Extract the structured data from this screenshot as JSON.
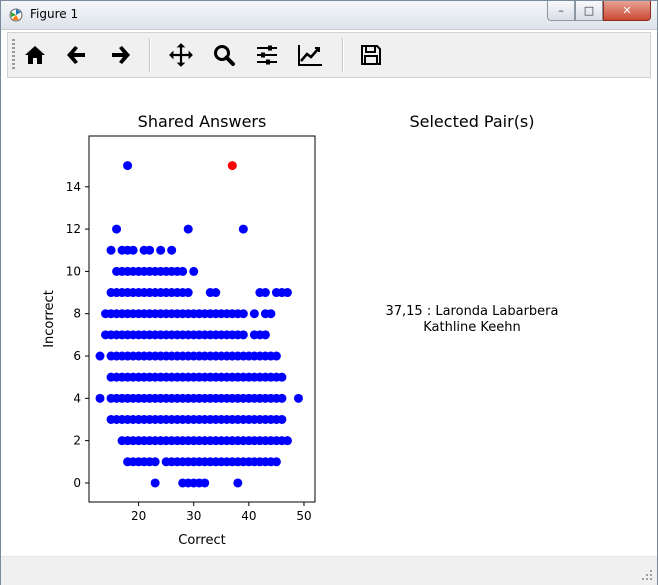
{
  "window": {
    "title": "Figure 1"
  },
  "caption_buttons": {
    "minimize": "–",
    "maximize": "□",
    "close": "✕"
  },
  "toolbar": {
    "buttons": [
      {
        "name": "home-icon",
        "tooltip": "Home"
      },
      {
        "name": "back-arrow-icon",
        "tooltip": "Back"
      },
      {
        "name": "forward-arrow-icon",
        "tooltip": "Forward"
      },
      {
        "name": "pan-icon",
        "tooltip": "Pan"
      },
      {
        "name": "zoom-icon",
        "tooltip": "Zoom"
      },
      {
        "name": "subplots-icon",
        "tooltip": "Subplots"
      },
      {
        "name": "axes-edit-icon",
        "tooltip": "Edit axis"
      },
      {
        "name": "save-icon",
        "tooltip": "Save"
      }
    ]
  },
  "figure": {
    "right_panel": {
      "title": "Selected Pair(s)",
      "line1": "37,15 : Laronda Labarbera",
      "line2": "Kathline Keehn"
    }
  },
  "chart_data": {
    "type": "scatter",
    "title": "Shared Answers",
    "xlabel": "Correct",
    "ylabel": "Incorrect",
    "xlim": [
      11,
      52
    ],
    "ylim": [
      -0.9,
      16.4
    ],
    "xticks": [
      20,
      30,
      40,
      50
    ],
    "yticks": [
      0,
      2,
      4,
      6,
      8,
      10,
      12,
      14
    ],
    "colors": {
      "points": "#0000ff",
      "selected": "#ff0000"
    },
    "rows": [
      {
        "y": 15,
        "x": [
          18
        ]
      },
      {
        "y": 12,
        "x": [
          16,
          29,
          39
        ]
      },
      {
        "y": 11,
        "x": [
          15,
          17,
          18,
          19,
          21,
          22,
          24,
          26
        ]
      },
      {
        "y": 10,
        "x": [
          16,
          17,
          18,
          19,
          20,
          21,
          22,
          23,
          24,
          25,
          26,
          27,
          28,
          30
        ]
      },
      {
        "y": 9,
        "x": [
          15,
          16,
          17,
          18,
          19,
          20,
          21,
          22,
          23,
          24,
          25,
          26,
          27,
          28,
          29,
          33,
          34,
          42,
          43,
          45,
          46,
          47
        ]
      },
      {
        "y": 8,
        "x": [
          14,
          15,
          16,
          17,
          18,
          19,
          20,
          21,
          22,
          23,
          24,
          25,
          26,
          27,
          28,
          29,
          30,
          31,
          32,
          33,
          34,
          35,
          36,
          37,
          38,
          39,
          41,
          43,
          44
        ]
      },
      {
        "y": 7,
        "x": [
          14,
          15,
          16,
          17,
          18,
          19,
          20,
          21,
          22,
          23,
          24,
          25,
          26,
          27,
          28,
          29,
          30,
          31,
          32,
          33,
          34,
          35,
          36,
          37,
          38,
          39,
          41,
          42,
          43
        ]
      },
      {
        "y": 6,
        "x": [
          13,
          15,
          16,
          17,
          18,
          19,
          20,
          21,
          22,
          23,
          24,
          25,
          26,
          27,
          28,
          29,
          30,
          31,
          32,
          33,
          34,
          35,
          36,
          37,
          38,
          39,
          40,
          41,
          42,
          43,
          44,
          45
        ]
      },
      {
        "y": 5,
        "x": [
          15,
          16,
          17,
          18,
          19,
          20,
          21,
          22,
          23,
          24,
          25,
          26,
          27,
          28,
          29,
          30,
          31,
          32,
          33,
          34,
          35,
          36,
          37,
          38,
          39,
          40,
          41,
          42,
          43,
          44,
          45,
          46
        ]
      },
      {
        "y": 4,
        "x": [
          13,
          15,
          16,
          17,
          18,
          19,
          20,
          21,
          22,
          23,
          24,
          25,
          26,
          27,
          28,
          29,
          30,
          31,
          32,
          33,
          34,
          35,
          36,
          37,
          38,
          39,
          40,
          41,
          42,
          43,
          44,
          45,
          46,
          49
        ]
      },
      {
        "y": 3,
        "x": [
          15,
          16,
          17,
          18,
          19,
          20,
          21,
          22,
          23,
          24,
          25,
          26,
          27,
          28,
          29,
          30,
          31,
          32,
          33,
          34,
          35,
          36,
          37,
          38,
          39,
          40,
          41,
          42,
          43,
          44,
          45,
          46
        ]
      },
      {
        "y": 2,
        "x": [
          17,
          18,
          19,
          20,
          21,
          22,
          23,
          24,
          25,
          26,
          27,
          28,
          29,
          30,
          31,
          32,
          33,
          34,
          35,
          36,
          37,
          38,
          39,
          40,
          41,
          42,
          43,
          44,
          45,
          46,
          47
        ]
      },
      {
        "y": 1,
        "x": [
          18,
          19,
          20,
          21,
          22,
          23,
          25,
          26,
          27,
          28,
          29,
          30,
          31,
          32,
          33,
          34,
          35,
          36,
          37,
          38,
          39,
          40,
          41,
          42,
          43,
          44,
          45
        ]
      },
      {
        "y": 0,
        "x": [
          23,
          28,
          29,
          30,
          31,
          32,
          38
        ]
      }
    ],
    "selected": {
      "x": 37,
      "y": 15
    }
  }
}
